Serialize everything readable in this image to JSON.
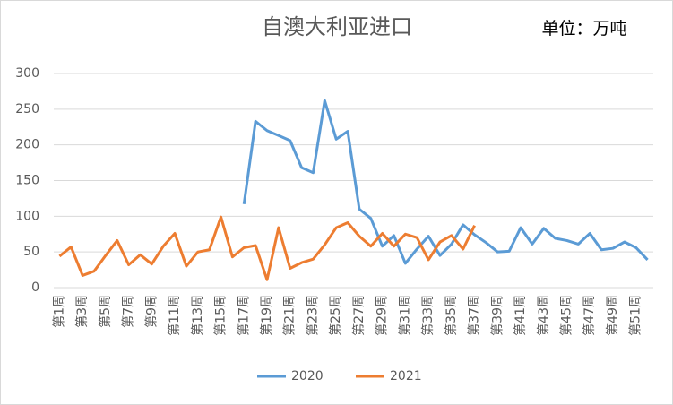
{
  "chart_data": {
    "type": "line",
    "title": "自澳大利亚进口",
    "annotation": "单位：万吨",
    "categories": [
      "第1周",
      null,
      "第3周",
      null,
      "第5周",
      null,
      "第7周",
      null,
      "第9周",
      null,
      "第11周",
      null,
      "第13周",
      null,
      "第15周",
      null,
      "第17周",
      null,
      "第19周",
      null,
      "第21周",
      null,
      "第23周",
      null,
      "第25周",
      null,
      "第27周",
      null,
      "第29周",
      null,
      "第31周",
      null,
      "第33周",
      null,
      "第35周",
      null,
      "第37周",
      null,
      "第39周",
      null,
      "第41周",
      null,
      "第43周",
      null,
      "第45周",
      null,
      "第47周",
      null,
      "第49周",
      null,
      "第51周",
      null
    ],
    "series": [
      {
        "name": "2020",
        "color": "#5b9bd5",
        "values": [
          null,
          null,
          null,
          null,
          null,
          null,
          null,
          null,
          null,
          null,
          null,
          null,
          null,
          null,
          null,
          null,
          117,
          233,
          220,
          213,
          206,
          168,
          161,
          262,
          208,
          219,
          110,
          97,
          58,
          73,
          34,
          54,
          72,
          45,
          61,
          88,
          74,
          63,
          50,
          51,
          84,
          61,
          83,
          69,
          66,
          61,
          76,
          53,
          55,
          64,
          56,
          39
        ]
      },
      {
        "name": "2021",
        "color": "#ed7d31",
        "values": [
          44,
          57,
          17,
          23,
          45,
          66,
          32,
          46,
          33,
          58,
          76,
          30,
          50,
          53,
          99,
          43,
          56,
          59,
          11,
          84,
          27,
          35,
          40,
          60,
          84,
          91,
          72,
          58,
          76,
          58,
          75,
          70,
          39,
          64,
          73,
          54,
          87,
          null,
          null,
          null,
          null,
          null,
          null,
          null,
          null,
          null,
          null,
          null,
          null,
          null,
          null,
          null
        ]
      }
    ],
    "ylim": [
      0,
      300
    ],
    "yticks": [
      0,
      50,
      100,
      150,
      200,
      250,
      300
    ],
    "grid": true,
    "legend": "bottom"
  }
}
